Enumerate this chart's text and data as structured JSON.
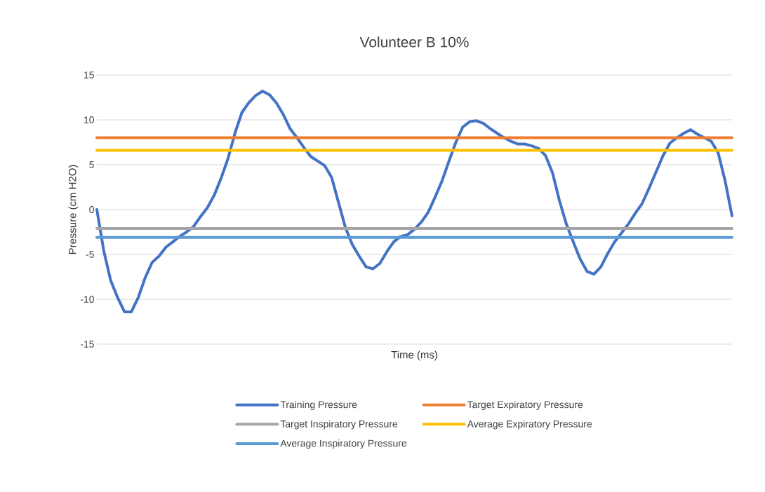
{
  "chart_data": {
    "type": "line",
    "title": "Volunteer B 10%",
    "xlabel": "Time (ms)",
    "ylabel": "Pressure (cm H2O)",
    "categories": [
      null,
      null,
      null,
      null,
      null,
      null,
      null,
      null,
      null,
      null,
      null,
      null,
      null,
      null,
      null,
      null,
      null,
      null,
      null,
      null,
      null,
      null,
      null,
      null,
      null,
      null,
      null,
      null,
      null,
      null,
      null,
      null,
      null,
      null,
      null,
      null,
      null,
      null,
      null,
      null,
      null,
      null,
      null,
      null,
      null,
      null,
      null,
      null,
      null,
      null,
      null,
      null,
      null,
      null,
      null,
      null,
      null,
      null,
      null,
      null,
      null,
      null,
      null,
      null,
      null,
      null,
      null,
      null,
      null,
      null,
      null,
      null,
      null,
      null,
      null,
      null,
      null,
      null,
      null,
      null,
      null,
      null,
      null,
      null,
      null,
      null,
      null,
      null,
      null,
      null,
      null,
      null,
      null
    ],
    "series": [
      {
        "name": "Training Pressure",
        "color": "#4472c4",
        "values": [
          0,
          -4.6,
          -7.9,
          -9.8,
          -11.4,
          -11.4,
          -9.8,
          -7.6,
          -5.9,
          -5.2,
          -4.2,
          -3.6,
          -3.0,
          -2.5,
          -1.9,
          -0.8,
          0.2,
          1.6,
          3.5,
          5.7,
          8.5,
          10.8,
          11.9,
          12.7,
          13.2,
          12.8,
          11.9,
          10.6,
          9.0,
          8.0,
          6.9,
          5.9,
          5.4,
          4.9,
          3.6,
          0.8,
          -2.0,
          -3.9,
          -5.2,
          -6.4,
          -6.6,
          -6.0,
          -4.7,
          -3.6,
          -3.0,
          -2.8,
          -2.2,
          -1.4,
          -0.3,
          1.4,
          3.2,
          5.4,
          7.5,
          9.2,
          9.8,
          9.9,
          9.6,
          9.0,
          8.5,
          8.0,
          7.6,
          7.3,
          7.3,
          7.1,
          6.8,
          6.0,
          4.1,
          1.0,
          -1.6,
          -3.6,
          -5.5,
          -6.9,
          -7.2,
          -6.4,
          -4.9,
          -3.6,
          -2.6,
          -1.6,
          -0.4,
          0.7,
          2.4,
          4.2,
          6.0,
          7.4,
          8.0,
          8.5,
          8.9,
          8.4,
          8.0,
          7.6,
          6.3,
          3.2,
          -0.7
        ]
      },
      {
        "name": "Target Expiratory Pressure",
        "color": "#ed7d31",
        "values": [
          8,
          8,
          8,
          8,
          8,
          8,
          8,
          8,
          8,
          8,
          8,
          8,
          8,
          8,
          8,
          8,
          8,
          8,
          8,
          8,
          8,
          8,
          8,
          8,
          8,
          8,
          8,
          8,
          8,
          8,
          8,
          8,
          8,
          8,
          8,
          8,
          8,
          8,
          8,
          8,
          8,
          8,
          8,
          8,
          8,
          8,
          8,
          8,
          8,
          8,
          8,
          8,
          8,
          8,
          8,
          8,
          8,
          8,
          8,
          8,
          8,
          8,
          8,
          8,
          8,
          8,
          8,
          8,
          8,
          8,
          8,
          8,
          8,
          8,
          8,
          8,
          8,
          8,
          8,
          8,
          8,
          8,
          8,
          8,
          8,
          8,
          8,
          8,
          8,
          8,
          8,
          8,
          8
        ]
      },
      {
        "name": "Target Inspiratory Pressure",
        "color": "#a5a5a5",
        "values": [
          -2.1,
          -2.1,
          -2.1,
          -2.1,
          -2.1,
          -2.1,
          -2.1,
          -2.1,
          -2.1,
          -2.1,
          -2.1,
          -2.1,
          -2.1,
          -2.1,
          -2.1,
          -2.1,
          -2.1,
          -2.1,
          -2.1,
          -2.1,
          -2.1,
          -2.1,
          -2.1,
          -2.1,
          -2.1,
          -2.1,
          -2.1,
          -2.1,
          -2.1,
          -2.1,
          -2.1,
          -2.1,
          -2.1,
          -2.1,
          -2.1,
          -2.1,
          -2.1,
          -2.1,
          -2.1,
          -2.1,
          -2.1,
          -2.1,
          -2.1,
          -2.1,
          -2.1,
          -2.1,
          -2.1,
          -2.1,
          -2.1,
          -2.1,
          -2.1,
          -2.1,
          -2.1,
          -2.1,
          -2.1,
          -2.1,
          -2.1,
          -2.1,
          -2.1,
          -2.1,
          -2.1,
          -2.1,
          -2.1,
          -2.1,
          -2.1,
          -2.1,
          -2.1,
          -2.1,
          -2.1,
          -2.1,
          -2.1,
          -2.1,
          -2.1,
          -2.1,
          -2.1,
          -2.1,
          -2.1,
          -2.1,
          -2.1,
          -2.1,
          -2.1,
          -2.1,
          -2.1,
          -2.1,
          -2.1,
          -2.1,
          -2.1,
          -2.1,
          -2.1,
          -2.1,
          -2.1,
          -2.1,
          -2.1
        ]
      },
      {
        "name": "Average Expiratory Pressure",
        "color": "#ffc000",
        "values": [
          6.6,
          6.6,
          6.6,
          6.6,
          6.6,
          6.6,
          6.6,
          6.6,
          6.6,
          6.6,
          6.6,
          6.6,
          6.6,
          6.6,
          6.6,
          6.6,
          6.6,
          6.6,
          6.6,
          6.6,
          6.6,
          6.6,
          6.6,
          6.6,
          6.6,
          6.6,
          6.6,
          6.6,
          6.6,
          6.6,
          6.6,
          6.6,
          6.6,
          6.6,
          6.6,
          6.6,
          6.6,
          6.6,
          6.6,
          6.6,
          6.6,
          6.6,
          6.6,
          6.6,
          6.6,
          6.6,
          6.6,
          6.6,
          6.6,
          6.6,
          6.6,
          6.6,
          6.6,
          6.6,
          6.6,
          6.6,
          6.6,
          6.6,
          6.6,
          6.6,
          6.6,
          6.6,
          6.6,
          6.6,
          6.6,
          6.6,
          6.6,
          6.6,
          6.6,
          6.6,
          6.6,
          6.6,
          6.6,
          6.6,
          6.6,
          6.6,
          6.6,
          6.6,
          6.6,
          6.6,
          6.6,
          6.6,
          6.6,
          6.6,
          6.6,
          6.6,
          6.6,
          6.6,
          6.6,
          6.6,
          6.6,
          6.6,
          6.6
        ]
      },
      {
        "name": "Average Inspiratory Pressure",
        "color": "#5b9bd5",
        "values": [
          -3.1,
          -3.1,
          -3.1,
          -3.1,
          -3.1,
          -3.1,
          -3.1,
          -3.1,
          -3.1,
          -3.1,
          -3.1,
          -3.1,
          -3.1,
          -3.1,
          -3.1,
          -3.1,
          -3.1,
          -3.1,
          -3.1,
          -3.1,
          -3.1,
          -3.1,
          -3.1,
          -3.1,
          -3.1,
          -3.1,
          -3.1,
          -3.1,
          -3.1,
          -3.1,
          -3.1,
          -3.1,
          -3.1,
          -3.1,
          -3.1,
          -3.1,
          -3.1,
          -3.1,
          -3.1,
          -3.1,
          -3.1,
          -3.1,
          -3.1,
          -3.1,
          -3.1,
          -3.1,
          -3.1,
          -3.1,
          -3.1,
          -3.1,
          -3.1,
          -3.1,
          -3.1,
          -3.1,
          -3.1,
          -3.1,
          -3.1,
          -3.1,
          -3.1,
          -3.1,
          -3.1,
          -3.1,
          -3.1,
          -3.1,
          -3.1,
          -3.1,
          -3.1,
          -3.1,
          -3.1,
          -3.1,
          -3.1,
          -3.1,
          -3.1,
          -3.1,
          -3.1,
          -3.1,
          -3.1,
          -3.1,
          -3.1,
          -3.1,
          -3.1,
          -3.1,
          -3.1,
          -3.1,
          -3.1,
          -3.1,
          -3.1,
          -3.1,
          -3.1,
          -3.1,
          -3.1,
          -3.1,
          -3.1
        ]
      }
    ],
    "ylim": [
      -15,
      15
    ],
    "yticks": [
      -15,
      -10,
      -5,
      0,
      5,
      10,
      15
    ],
    "grid": "y",
    "legend": "bottom",
    "marker": "none",
    "line_style": "solid",
    "tick_labels": "y"
  }
}
